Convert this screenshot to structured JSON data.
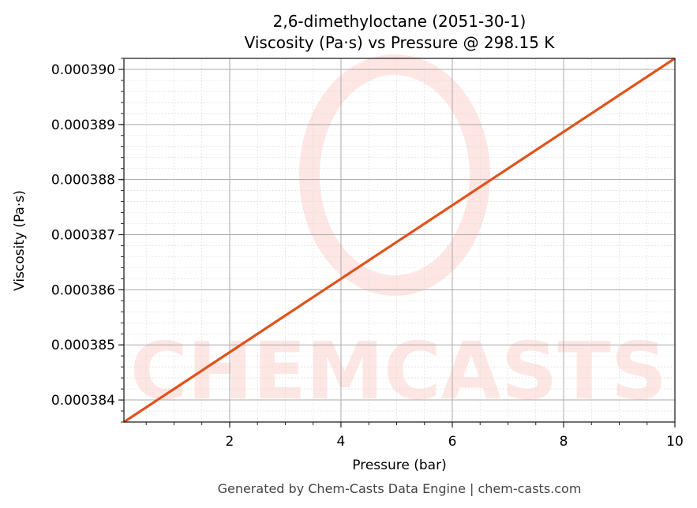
{
  "chart_data": {
    "type": "line",
    "title": "2,6-dimethyloctane (2051-30-1)",
    "subtitle": "Viscosity (Pa·s) vs Pressure @ 298.15 K",
    "xlabel": "Pressure (bar)",
    "ylabel": "Viscosity (Pa·s)",
    "xlim": [
      0.1,
      10
    ],
    "ylim": [
      0.0003836,
      0.0003902
    ],
    "xticks": [
      2,
      4,
      6,
      8,
      10
    ],
    "xtick_labels": [
      "2",
      "4",
      "6",
      "8",
      "10"
    ],
    "yticks": [
      0.000384,
      0.000385,
      0.000386,
      0.000387,
      0.000388,
      0.000389,
      0.00039
    ],
    "ytick_labels": [
      "0.000384",
      "0.000385",
      "0.000386",
      "0.000387",
      "0.000388",
      "0.000389",
      "0.000390"
    ],
    "grid": true,
    "series": [
      {
        "x": [
          0.1,
          10
        ],
        "y": [
          0.0003836,
          0.0003902
        ],
        "color": "#E0531C"
      }
    ]
  },
  "footer": "Generated by Chem-Casts Data Engine | chem-casts.com",
  "watermark": "CHEMCASTS",
  "colors": {
    "line": "#E0531C",
    "watermark": "#FDE3E0"
  }
}
